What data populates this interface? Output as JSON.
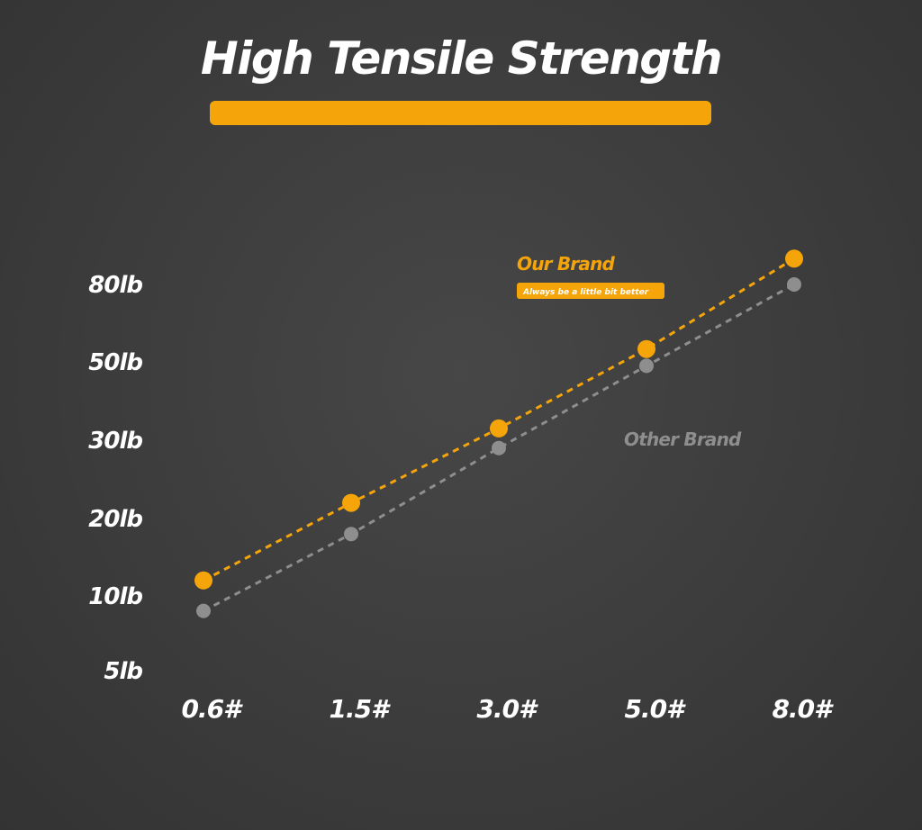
{
  "header": {
    "title": "High Tensile Strength"
  },
  "colors": {
    "background": "#3e3e3e",
    "accent": "#f5a50a",
    "secondary": "#8e8e8e",
    "text": "#ffffff"
  },
  "chart_data": {
    "type": "line",
    "title": "",
    "xlabel": "",
    "ylabel": "",
    "categories": [
      "0.6#",
      "1.5#",
      "3.0#",
      "5.0#",
      "8.0#"
    ],
    "y_ticks": [
      "5lb",
      "10lb",
      "20lb",
      "30lb",
      "50lb",
      "80lb"
    ],
    "scale": "ordinal tick spacing (5, 10, 20, 30, 50, 80 lb)",
    "grid": false,
    "series": [
      {
        "name": "Our Brand",
        "subtitle": "Always be a little bit better",
        "color": "#f5a50a",
        "line_style": "dashed",
        "values": [
          12,
          22,
          33,
          55,
          90
        ]
      },
      {
        "name": "Other Brand",
        "color": "#8e8e8e",
        "line_style": "dashed",
        "values": [
          9,
          18,
          29,
          49,
          80
        ]
      }
    ]
  }
}
